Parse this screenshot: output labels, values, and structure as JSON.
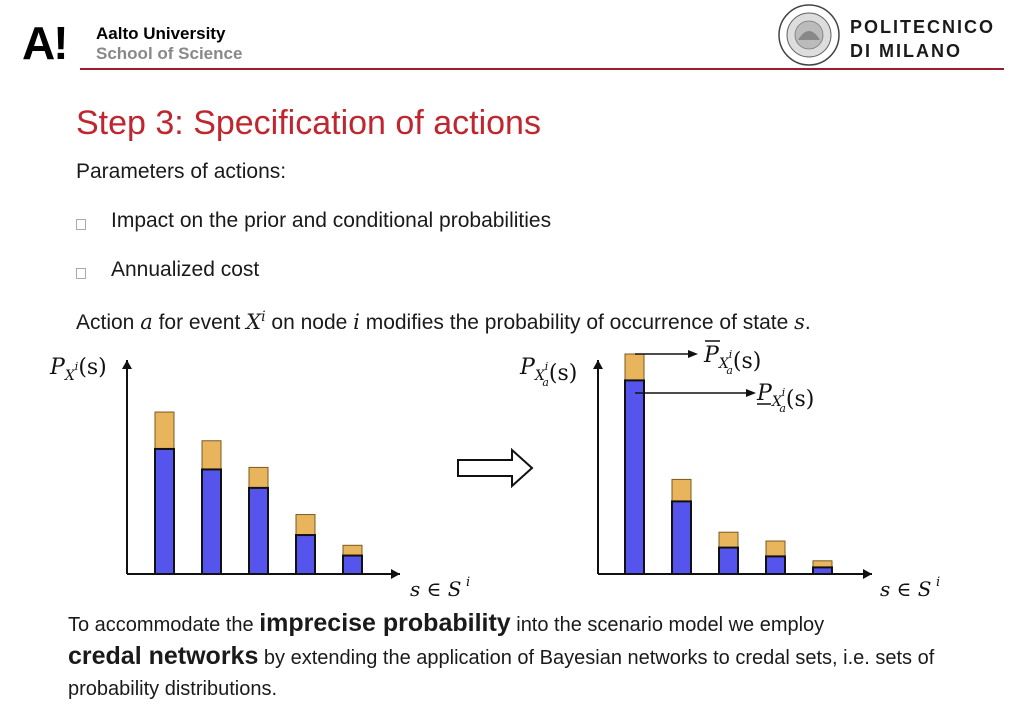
{
  "header": {
    "left_logo_mark": "A!",
    "left_org_line1": "Aalto University",
    "left_org_line2": "School of Science",
    "right_seal_text_top": "POLITECNICO",
    "right_seal_text_bottom": "MILANO",
    "right_org_line1": "POLITECNICO",
    "right_org_line2": "DI MILANO",
    "colors": {
      "rule": "#9b1c2e",
      "title": "#c0262f",
      "bar_lower": "#5555ee",
      "bar_upper": "#e8b45c"
    }
  },
  "slide": {
    "title": "Step 3: Specification of actions",
    "subtitle": "Parameters of actions:",
    "bullets": [
      "Impact on the prior and conditional probabilities",
      "Annualized cost"
    ],
    "action_line": {
      "p1": "Action ",
      "a": "a",
      "p2": " for event ",
      "X": "X",
      "i_sup": "i",
      "p3": " on node ",
      "i": "i",
      "p4": " modifies the probability of occurrence of state ",
      "s": "s",
      "p5": "."
    },
    "paragraph": {
      "p1": "To accommodate the ",
      "b1": "imprecise probability",
      "p2": " into the scenario model we employ ",
      "b2": "credal networks",
      "p3": " by extending the application of Bayesian networks to credal sets, i.e. sets of probability distributions."
    }
  },
  "chart_data": [
    {
      "type": "bar",
      "ylabel": "P_{X^i}(s)",
      "xlabel": "s ∈ S^i",
      "bars": [
        {
          "lower": 0.61,
          "upper": 0.79
        },
        {
          "lower": 0.51,
          "upper": 0.65
        },
        {
          "lower": 0.42,
          "upper": 0.52
        },
        {
          "lower": 0.19,
          "upper": 0.29
        },
        {
          "lower": 0.09,
          "upper": 0.14
        }
      ]
    },
    {
      "type": "bar",
      "ylabel": "P_{X_a^i}(s)",
      "xlabel": "s ∈ S^i",
      "annotations": [
        "P̄_{X_a^i}(s)",
        "P̲_{X_a^i}(s)"
      ],
      "bars": [
        {
          "lower": 0.88,
          "upper": 1.0
        },
        {
          "lower": 0.33,
          "upper": 0.43
        },
        {
          "lower": 0.12,
          "upper": 0.19
        },
        {
          "lower": 0.08,
          "upper": 0.15
        },
        {
          "lower": 0.03,
          "upper": 0.06
        }
      ]
    }
  ],
  "arrow_icon": "hollow-right-arrow-icon"
}
